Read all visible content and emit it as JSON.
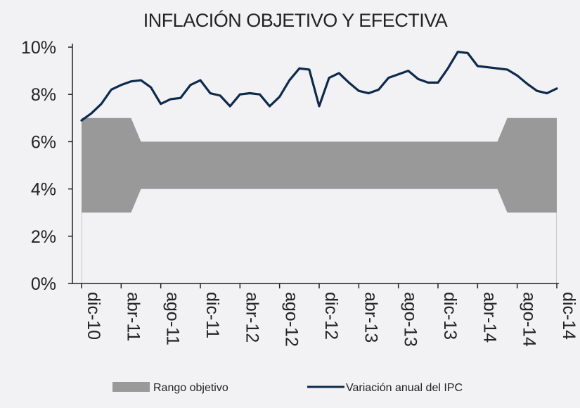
{
  "chart_data": {
    "type": "line",
    "title": "INFLACIÓN OBJETIVO Y EFECTIVA",
    "xlabel": "",
    "ylabel": "",
    "ylim": [
      0,
      10
    ],
    "y_ticks": [
      "0%",
      "2%",
      "4%",
      "6%",
      "8%",
      "10%"
    ],
    "y_tick_values": [
      0,
      2,
      4,
      6,
      8,
      10
    ],
    "x_ticks": [
      "dic-10",
      "abr-11",
      "ago-11",
      "dic-11",
      "abr-12",
      "ago-12",
      "dic-12",
      "abr-13",
      "ago-13",
      "dic-13",
      "abr-14",
      "ago-14",
      "dic-14"
    ],
    "x_tick_index": [
      0,
      4,
      8,
      12,
      16,
      20,
      24,
      28,
      32,
      36,
      40,
      44,
      48
    ],
    "n_points": 49,
    "band": {
      "name": "Rango objetivo",
      "color": "#999999",
      "lower": [
        3,
        3,
        3,
        3,
        3,
        3,
        4,
        4,
        4,
        4,
        4,
        4,
        4,
        4,
        4,
        4,
        4,
        4,
        4,
        4,
        4,
        4,
        4,
        4,
        4,
        4,
        4,
        4,
        4,
        4,
        4,
        4,
        4,
        4,
        4,
        4,
        4,
        4,
        4,
        4,
        4,
        4,
        4,
        3,
        3,
        3,
        3,
        3,
        3
      ],
      "upper": [
        7,
        7,
        7,
        7,
        7,
        7,
        6,
        6,
        6,
        6,
        6,
        6,
        6,
        6,
        6,
        6,
        6,
        6,
        6,
        6,
        6,
        6,
        6,
        6,
        6,
        6,
        6,
        6,
        6,
        6,
        6,
        6,
        6,
        6,
        6,
        6,
        6,
        6,
        6,
        6,
        6,
        6,
        6,
        7,
        7,
        7,
        7,
        7,
        7
      ]
    },
    "series": [
      {
        "name": "Variación anual del IPC",
        "color": "#0d2a4c",
        "values": [
          6.9,
          7.2,
          7.6,
          8.2,
          8.4,
          8.55,
          8.6,
          8.3,
          7.6,
          7.8,
          7.85,
          8.4,
          8.6,
          8.05,
          7.95,
          7.5,
          8.0,
          8.05,
          8.0,
          7.5,
          7.9,
          8.6,
          9.1,
          9.05,
          7.5,
          8.7,
          8.9,
          8.5,
          8.15,
          8.05,
          8.2,
          8.7,
          8.85,
          9.0,
          8.65,
          8.5,
          8.5,
          9.1,
          9.8,
          9.75,
          9.2,
          9.15,
          9.1,
          9.05,
          8.8,
          8.45,
          8.15,
          8.05,
          8.25
        ]
      }
    ],
    "legend": [
      {
        "label": "Rango objetivo",
        "kind": "band"
      },
      {
        "label": "Variación anual del IPC",
        "kind": "line"
      }
    ],
    "legend_position": "bottom",
    "grid": false
  }
}
